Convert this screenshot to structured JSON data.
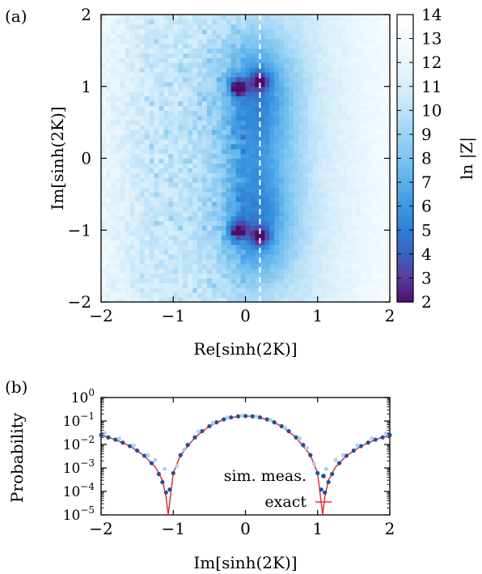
{
  "chart_data": [
    {
      "panel": "(a)",
      "type": "heatmap",
      "xlabel": "Re[sinh(2K)]",
      "ylabel": "Im[sinh(2K)]",
      "xlim": [
        -2,
        2
      ],
      "ylim": [
        -2,
        2
      ],
      "xticks": [
        -2,
        -1,
        0,
        1,
        2
      ],
      "yticks": [
        -2,
        -1,
        0,
        1,
        2
      ],
      "colorbar": {
        "label": "ln |Z|",
        "range": [
          2,
          14
        ],
        "ticks": [
          2,
          3,
          4,
          5,
          6,
          7,
          8,
          9,
          10,
          11,
          12,
          13,
          14
        ],
        "colors": [
          "#4b0f6b",
          "#5a3b9a",
          "#3d5fc0",
          "#2f7fd6",
          "#3d97e0",
          "#5ab0ea",
          "#7cc4f0",
          "#9dd3f4",
          "#bde2f8",
          "#d6eefb",
          "#e9f6fd",
          "#f6fbff",
          "#ffffff"
        ]
      },
      "minima": [
        {
          "re": -0.1,
          "im": 1.0,
          "value": 2.2
        },
        {
          "re": -0.1,
          "im": -1.0,
          "value": 2.2
        },
        {
          "re": 0.2,
          "im": 1.08,
          "value": 3.8
        },
        {
          "re": 0.2,
          "im": -1.08,
          "value": 3.8
        }
      ],
      "dashed_line": {
        "re": 0.2
      }
    },
    {
      "panel": "(b)",
      "type": "scatter",
      "xlabel": "Im[sinh(2K)]",
      "ylabel": "Probability",
      "xlim": [
        -2,
        2
      ],
      "ylim": [
        1e-05,
        1
      ],
      "log_y": true,
      "xticks": [
        -2,
        -1,
        0,
        1,
        2
      ],
      "ytick_labels": [
        "10^0",
        "10^-1",
        "10^-2",
        "10^-3",
        "10^-4",
        "10^-5"
      ],
      "legend": {
        "position": "lower-right"
      },
      "series": [
        {
          "name": "sim. meas.",
          "kind": "points",
          "color": "#1f4f9a",
          "x": [
            -2.0,
            -1.9,
            -1.8,
            -1.7,
            -1.6,
            -1.5,
            -1.4,
            -1.3,
            -1.2,
            -1.15,
            -1.1,
            -1.05,
            -1.0,
            -0.9,
            -0.8,
            -0.7,
            -0.6,
            -0.5,
            -0.4,
            -0.3,
            -0.2,
            -0.1,
            0.0,
            0.1,
            0.2,
            0.3,
            0.4,
            0.5,
            0.6,
            0.7,
            0.8,
            0.9,
            1.0,
            1.05,
            1.1,
            1.15,
            1.2,
            1.3,
            1.4,
            1.5,
            1.6,
            1.7,
            1.8,
            1.9,
            2.0
          ],
          "y": [
            0.025,
            0.02,
            0.016,
            0.012,
            0.0085,
            0.0055,
            0.0033,
            0.0016,
            0.00055,
            0.00025,
            9e-05,
            0.00012,
            0.0006,
            0.0035,
            0.0095,
            0.02,
            0.037,
            0.06,
            0.088,
            0.117,
            0.142,
            0.158,
            0.163,
            0.158,
            0.142,
            0.117,
            0.088,
            0.06,
            0.037,
            0.02,
            0.0095,
            0.0035,
            0.0006,
            0.00012,
            9e-05,
            0.00025,
            0.00055,
            0.0016,
            0.0033,
            0.0055,
            0.0085,
            0.012,
            0.016,
            0.02,
            0.025
          ]
        },
        {
          "name": "sim. meas. (scatter)",
          "kind": "points",
          "color": "#a9d4f3",
          "x": [
            -1.95,
            -1.75,
            -1.55,
            -1.35,
            -1.25,
            -1.12,
            -0.95,
            -0.85,
            -0.65,
            -0.45,
            -0.25,
            -0.05,
            0.15,
            0.35,
            0.55,
            0.75,
            0.85,
            0.95,
            1.12,
            1.25,
            1.35,
            1.55,
            1.75,
            1.95
          ],
          "y": [
            0.03,
            0.018,
            0.009,
            0.0035,
            0.0022,
            0.0009,
            0.0012,
            0.006,
            0.035,
            0.085,
            0.14,
            0.168,
            0.155,
            0.11,
            0.05,
            0.018,
            0.007,
            0.0015,
            0.0009,
            0.0022,
            0.0035,
            0.009,
            0.018,
            0.03
          ]
        },
        {
          "name": "exact",
          "kind": "line",
          "color": "#e0303a",
          "x": [
            -2.0,
            -1.8,
            -1.6,
            -1.4,
            -1.25,
            -1.15,
            -1.1,
            -1.07,
            -1.0,
            -0.9,
            -0.7,
            -0.5,
            -0.3,
            -0.1,
            0.0,
            0.1,
            0.3,
            0.5,
            0.7,
            0.9,
            1.0,
            1.07,
            1.1,
            1.15,
            1.25,
            1.4,
            1.6,
            1.8,
            2.0
          ],
          "y": [
            0.025,
            0.016,
            0.0085,
            0.0033,
            0.0011,
            0.0003,
            6e-05,
            1e-05,
            0.0006,
            0.0035,
            0.02,
            0.06,
            0.117,
            0.158,
            0.163,
            0.158,
            0.117,
            0.06,
            0.02,
            0.0035,
            0.0006,
            1e-05,
            6e-05,
            0.0003,
            0.0011,
            0.0033,
            0.0085,
            0.016,
            0.025
          ]
        }
      ]
    }
  ]
}
